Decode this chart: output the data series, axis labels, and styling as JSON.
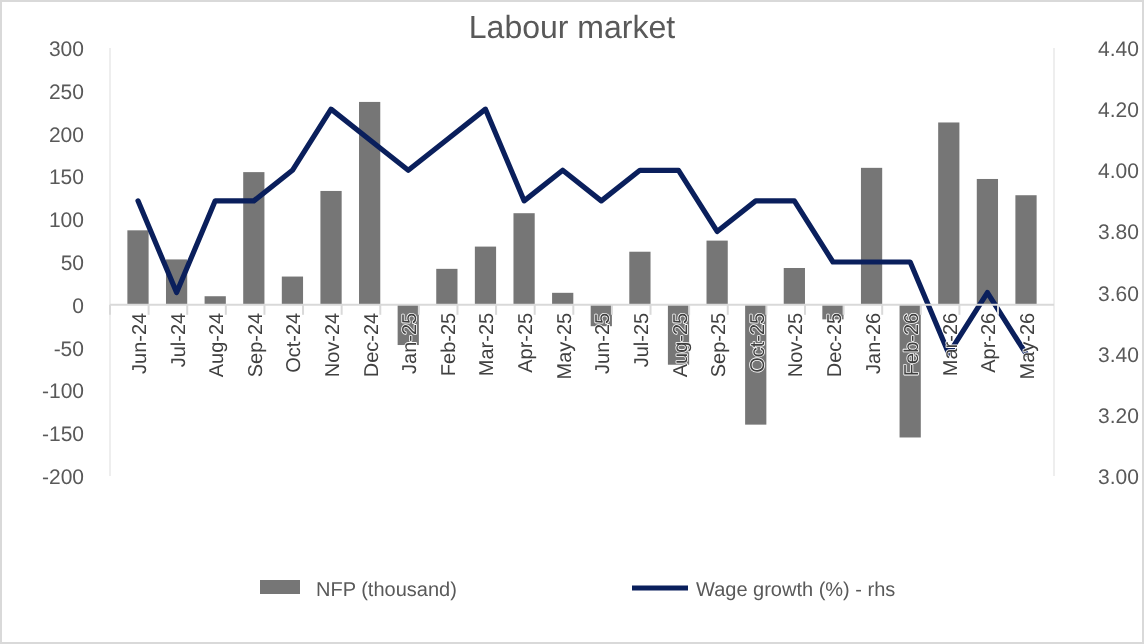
{
  "chart_data": {
    "type": "bar",
    "title": "Labour market",
    "categories": [
      "Jun-24",
      "Jul-24",
      "Aug-24",
      "Sep-24",
      "Oct-24",
      "Nov-24",
      "Dec-24",
      "Jan-25",
      "Feb-25",
      "Mar-25",
      "Apr-25",
      "May-25",
      "Jun-25",
      "Jul-25",
      "Aug-25",
      "Sep-25",
      "Oct-25",
      "Nov-25",
      "Dec-25",
      "Jan-26",
      "Feb-26",
      "Mar-26",
      "Apr-26",
      "May-26"
    ],
    "series": [
      {
        "name": "NFP (thousand)",
        "color": "#767676",
        "values": [
          87,
          53,
          10,
          155,
          33,
          133,
          237,
          -47,
          42,
          68,
          107,
          14,
          -25,
          62,
          -70,
          75,
          -140,
          43,
          -17,
          160,
          -155,
          213,
          147,
          128
        ]
      },
      {
        "name": "Wage growth (%) - rhs",
        "type": "line",
        "axis": "y2",
        "color": "#0a1f5c",
        "values": [
          3.9,
          3.6,
          3.9,
          3.9,
          4.0,
          4.2,
          4.1,
          4.0,
          4.1,
          4.2,
          3.9,
          4.0,
          3.9,
          4.0,
          4.0,
          3.8,
          3.9,
          3.9,
          3.7,
          3.7,
          3.7,
          3.4,
          3.6,
          3.4
        ]
      }
    ],
    "ylim": [
      -200,
      300
    ],
    "yticks": [
      -200,
      -150,
      -100,
      -50,
      0,
      50,
      100,
      150,
      200,
      250,
      300
    ],
    "y2lim": [
      3.0,
      4.4
    ],
    "y2ticks": [
      {
        "value": 3.0,
        "label": "3.00"
      },
      {
        "value": 3.2,
        "label": "3.20"
      },
      {
        "value": 3.4,
        "label": "3.40"
      },
      {
        "value": 3.6,
        "label": "3.60"
      },
      {
        "value": 3.8,
        "label": "3.80"
      },
      {
        "value": 4.0,
        "label": "4.00"
      },
      {
        "value": 4.2,
        "label": "4.20"
      },
      {
        "value": 4.4,
        "label": "4.40"
      }
    ],
    "legend": "bottom",
    "grid": false,
    "marker": "none",
    "line_style": "solid"
  }
}
